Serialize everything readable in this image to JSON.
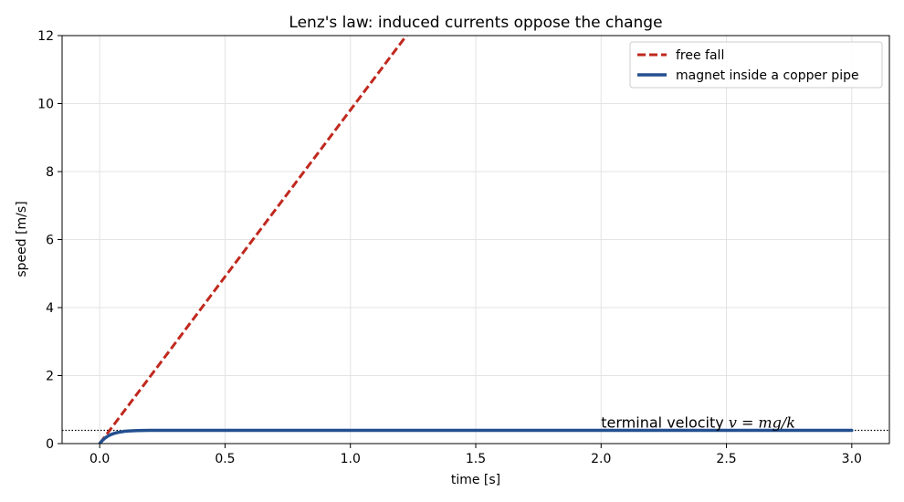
{
  "chart_data": {
    "type": "line",
    "title": "Lenz's law: induced currents oppose the change",
    "xlabel": "time [s]",
    "ylabel": "speed [m/s]",
    "xlim": [
      -0.15,
      3.15
    ],
    "ylim": [
      0,
      12
    ],
    "xticks": [
      0.0,
      0.5,
      1.0,
      1.5,
      2.0,
      2.5,
      3.0
    ],
    "xtick_labels": [
      "0.0",
      "0.5",
      "1.0",
      "1.5",
      "2.0",
      "2.5",
      "3.0"
    ],
    "yticks": [
      0,
      2,
      4,
      6,
      8,
      10,
      12
    ],
    "ytick_labels": [
      "0",
      "2",
      "4",
      "6",
      "8",
      "10",
      "12"
    ],
    "grid": true,
    "legend_position": "top-right",
    "series": [
      {
        "name": "free fall",
        "color": "#c0281e",
        "style": "dashed",
        "x": [
          0.0,
          0.25,
          0.5,
          0.75,
          1.0,
          1.25
        ],
        "y": [
          0.0,
          2.45,
          4.91,
          7.36,
          9.81,
          12.26
        ]
      },
      {
        "name": "magnet inside a copper pipe",
        "color": "#234f8f",
        "style": "solid",
        "x": [
          0.0,
          0.01,
          0.02,
          0.03,
          0.04,
          0.05,
          0.06,
          0.08,
          0.1,
          0.12,
          0.15,
          0.2,
          0.3,
          0.5,
          1.0,
          1.5,
          2.0,
          2.5,
          3.0
        ],
        "y": [
          0.0,
          0.087,
          0.155,
          0.208,
          0.249,
          0.281,
          0.305,
          0.34,
          0.361,
          0.373,
          0.383,
          0.388,
          0.39,
          0.39,
          0.39,
          0.39,
          0.39,
          0.39,
          0.39
        ]
      }
    ],
    "reference_line": {
      "y": 0.39,
      "style": "dotted",
      "color": "#000000"
    },
    "annotation": {
      "text": "terminal velocity ",
      "math": "v = mg/k",
      "x": 2.0,
      "y": 0.6
    }
  }
}
